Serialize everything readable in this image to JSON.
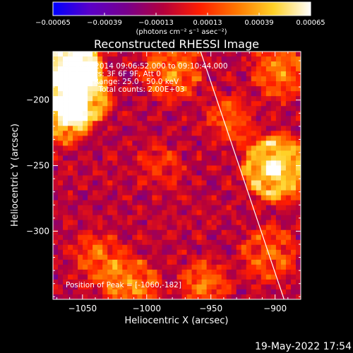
{
  "chart_data": {
    "type": "heatmap",
    "title": "Reconstructed RHESSI Image",
    "xlabel": "Heliocentric X (arcsec)",
    "ylabel": "Heliocentric Y (arcsec)",
    "xlim": [
      -1073,
      -880
    ],
    "ylim": [
      -352,
      -163
    ],
    "x_ticks": [
      -1050,
      -1000,
      -950,
      -900
    ],
    "x_tick_labels": [
      "−1050",
      "−1000",
      "−950",
      "−900"
    ],
    "y_ticks": [
      -200,
      -250,
      -300
    ],
    "y_tick_labels": [
      "−200",
      "−250",
      "−300"
    ],
    "colorbar": {
      "range": [
        -0.00065,
        0.00065
      ],
      "ticks": [
        -0.00065,
        -0.00039,
        -0.00013,
        0.00013,
        0.00039,
        0.00065
      ],
      "tick_labels": [
        "−0.00065",
        "−0.00039",
        "−0.00013",
        "0.00013",
        "0.00039",
        "0.00065"
      ],
      "unit_label": "(photons cm⁻² s⁻¹ asec⁻²)",
      "colormap": [
        "#0000ff",
        "#5a00c8",
        "#78008c",
        "#b4003c",
        "#ff1e00",
        "#ff7800",
        "#ffd228",
        "#ffffff"
      ]
    },
    "annotations": [
      "20-Nov-2014 09:06:52.000 to 09:10:44.000",
      "Detectors: 3F 6F 9F, Att 0",
      "Energy Range: 25.0 - 50.0 keV",
      "Clean     Total counts: 2.00E+03"
    ],
    "peak_label": "Position of Peak = [-1060,-182]",
    "limb_line": {
      "x": [
        -958,
        -893
      ],
      "y": [
        -163,
        -352
      ]
    },
    "sources": [
      {
        "x": -1058,
        "y": -172,
        "amp": 0.0011,
        "sigma": 9
      },
      {
        "x": -1052,
        "y": -196,
        "amp": 0.0008,
        "sigma": 10
      },
      {
        "x": -1064,
        "y": -215,
        "amp": 0.0006,
        "sigma": 8
      },
      {
        "x": -980,
        "y": -178,
        "amp": 0.0004,
        "sigma": 10
      },
      {
        "x": -900,
        "y": -252,
        "amp": 0.0008,
        "sigma": 11
      },
      {
        "x": -897,
        "y": -178,
        "amp": 0.0004,
        "sigma": 9
      },
      {
        "x": -1012,
        "y": -342,
        "amp": 0.00045,
        "sigma": 9
      },
      {
        "x": -1038,
        "y": -320,
        "amp": 0.00035,
        "sigma": 8
      },
      {
        "x": -955,
        "y": -340,
        "amp": 0.00035,
        "sigma": 8
      },
      {
        "x": -905,
        "y": -318,
        "amp": 0.00035,
        "sigma": 9
      },
      {
        "x": -935,
        "y": -215,
        "amp": 0.0003,
        "sigma": 8
      },
      {
        "x": -990,
        "y": -250,
        "amp": 0.0002,
        "sigma": 7
      }
    ],
    "grid": false
  },
  "footer": {
    "date": "19-May-2022 17:54"
  }
}
